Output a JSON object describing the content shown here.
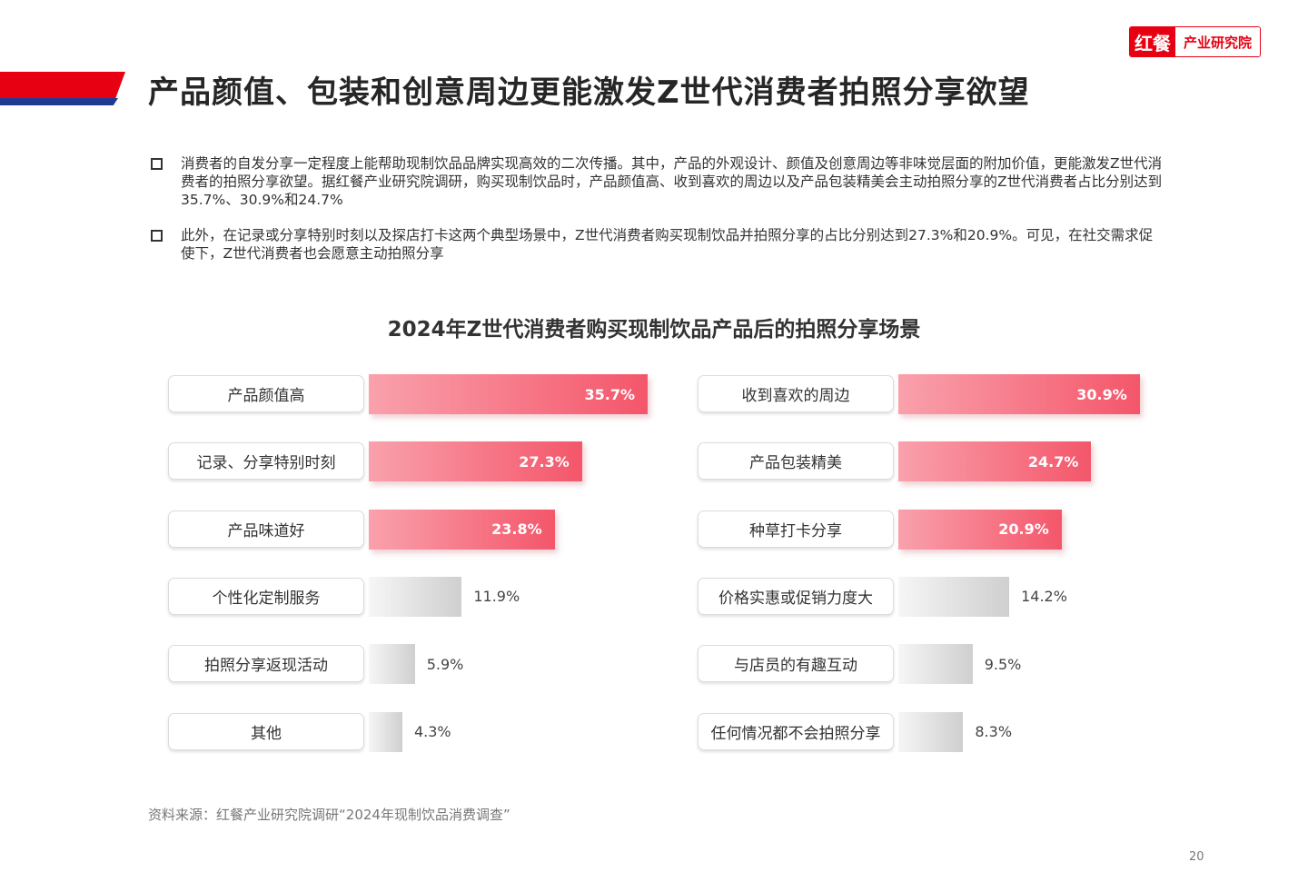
{
  "header": {
    "title": "产品颜值、包装和创意周边更能激发Z世代消费者拍照分享欲望",
    "logo_brand": "红餐",
    "logo_text": "产业研究院"
  },
  "bullets": [
    {
      "text": "消费者的自发分享一定程度上能帮助现制饮品品牌实现高效的二次传播。其中，产品的外观设计、颜值及创意周边等非味觉层面的附加价值，更能激发Z世代消费者的拍照分享欲望。据红餐产业研究院调研，购买现制饮品时，产品颜值高、收到喜欢的周边以及产品包装精美会主动拍照分享的Z世代消费者占比分别达到35.7%、30.9%和24.7%"
    },
    {
      "text": "此外，在记录或分享特别时刻以及探店打卡这两个典型场景中，Z世代消费者购买现制饮品并拍照分享的占比分别达到27.3%和20.9%。可见，在社交需求促使下，Z世代消费者也会愿意主动拍照分享"
    }
  ],
  "chart_data": {
    "type": "bar",
    "orientation": "horizontal",
    "title": "2024年Z世代消费者购买现制饮品产品后的拍照分享场景",
    "unit": "%",
    "colors": {
      "highlight": "#f4566a",
      "normal": "#d0d0d0"
    },
    "groups": [
      {
        "categories": [
          "产品颜值高",
          "记录、分享特别时刻",
          "产品味道好",
          "个性化定制服务",
          "拍照分享返现活动",
          "其他"
        ],
        "values": [
          35.7,
          27.3,
          23.8,
          11.9,
          5.9,
          4.3
        ],
        "labels": [
          "35.7%",
          "27.3%",
          "23.8%",
          "11.9%",
          "5.9%",
          "4.3%"
        ],
        "highlight": [
          true,
          true,
          true,
          false,
          false,
          false
        ]
      },
      {
        "categories": [
          "收到喜欢的周边",
          "产品包装精美",
          "种草打卡分享",
          "价格实惠或促销力度大",
          "与店员的有趣互动",
          "任何情况都不会拍照分享"
        ],
        "values": [
          30.9,
          24.7,
          20.9,
          14.2,
          9.5,
          8.3
        ],
        "labels": [
          "30.9%",
          "24.7%",
          "20.9%",
          "14.2%",
          "9.5%",
          "8.3%"
        ],
        "highlight": [
          true,
          true,
          true,
          false,
          false,
          false
        ]
      }
    ]
  },
  "footer": {
    "source": "资料来源：红餐产业研究院调研“2024年现制饮品消费调查”",
    "page_number": "20"
  }
}
